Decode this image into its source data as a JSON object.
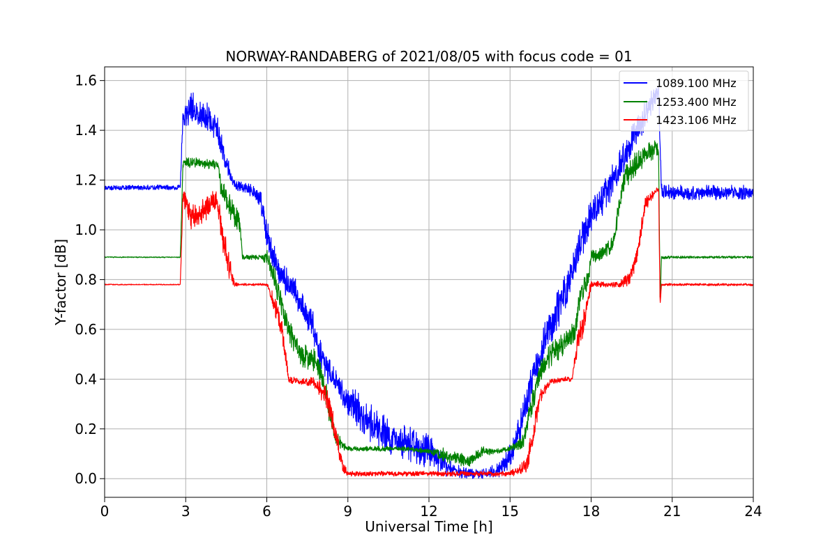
{
  "chart_data": {
    "type": "line",
    "title": "NORWAY-RANDABERG of 2021/08/05 with focus code = 01",
    "xlabel": "Universal Time [h]",
    "ylabel": "Y-factor [dB]",
    "xlim": [
      0,
      24
    ],
    "ylim": [
      -0.075,
      1.655
    ],
    "xticks": [
      0,
      3,
      6,
      9,
      12,
      15,
      18,
      21,
      24
    ],
    "xtick_labels": [
      "0",
      "3",
      "6",
      "9",
      "12",
      "15",
      "18",
      "21",
      "24"
    ],
    "yticks": [
      0.0,
      0.2,
      0.4,
      0.6,
      0.8,
      1.0,
      1.2,
      1.4,
      1.6
    ],
    "ytick_labels": [
      "0.0",
      "0.2",
      "0.4",
      "0.6",
      "0.8",
      "1.0",
      "1.2",
      "1.4",
      "1.6"
    ],
    "grid": true,
    "legend_position": "top-right",
    "series": [
      {
        "name": "1089.100 MHz",
        "color": "#0000ff",
        "x": [
          0,
          1,
          2,
          2.8,
          2.9,
          3.3,
          3.8,
          4.2,
          4.4,
          4.8,
          5.2,
          5.6,
          5.8,
          6.0,
          6.3,
          6.6,
          7.0,
          7.3,
          7.7,
          7.9,
          8.2,
          8.5,
          8.8,
          9.2,
          9.6,
          10.0,
          10.5,
          11.0,
          11.5,
          12.0,
          12.5,
          13.0,
          13.5,
          14.0,
          14.5,
          14.8,
          15.0,
          15.3,
          15.6,
          15.9,
          16.3,
          16.7,
          17.0,
          17.3,
          17.6,
          17.8,
          18.0,
          18.4,
          18.8,
          19.2,
          19.6,
          20.0,
          20.4,
          20.5,
          20.6,
          21.0,
          22.0,
          23.0,
          24.0
        ],
        "y": [
          1.17,
          1.17,
          1.17,
          1.17,
          1.47,
          1.49,
          1.45,
          1.4,
          1.3,
          1.18,
          1.17,
          1.15,
          1.1,
          0.98,
          0.88,
          0.8,
          0.76,
          0.7,
          0.62,
          0.52,
          0.44,
          0.4,
          0.34,
          0.3,
          0.24,
          0.21,
          0.17,
          0.15,
          0.13,
          0.11,
          0.06,
          0.03,
          0.02,
          0.02,
          0.03,
          0.05,
          0.1,
          0.18,
          0.3,
          0.42,
          0.56,
          0.66,
          0.74,
          0.84,
          0.94,
          1.0,
          1.06,
          1.12,
          1.2,
          1.28,
          1.38,
          1.46,
          1.55,
          1.55,
          1.16,
          1.15,
          1.15,
          1.15,
          1.15
        ],
        "noise": [
          0.01,
          0.01,
          0.01,
          0.01,
          0.06,
          0.07,
          0.06,
          0.05,
          0.05,
          0.02,
          0.02,
          0.03,
          0.05,
          0.06,
          0.06,
          0.06,
          0.06,
          0.06,
          0.06,
          0.06,
          0.06,
          0.05,
          0.06,
          0.07,
          0.08,
          0.08,
          0.07,
          0.07,
          0.07,
          0.07,
          0.05,
          0.03,
          0.02,
          0.02,
          0.03,
          0.04,
          0.05,
          0.06,
          0.08,
          0.08,
          0.08,
          0.08,
          0.08,
          0.08,
          0.08,
          0.07,
          0.07,
          0.07,
          0.07,
          0.07,
          0.06,
          0.06,
          0.04,
          0.04,
          0.03,
          0.03,
          0.03,
          0.03,
          0.03
        ]
      },
      {
        "name": "1253.400 MHz",
        "color": "#008000",
        "x": [
          0,
          1,
          2,
          2.8,
          2.9,
          3.5,
          4.2,
          4.3,
          4.6,
          5.0,
          5.1,
          5.8,
          6.0,
          6.3,
          6.6,
          6.9,
          7.3,
          7.7,
          8.0,
          8.3,
          8.5,
          8.8,
          9.0,
          9.5,
          10.0,
          11.0,
          12.0,
          12.5,
          13.0,
          13.5,
          14.0,
          14.5,
          15.0,
          15.5,
          15.8,
          16.2,
          16.5,
          16.8,
          17.1,
          17.4,
          17.6,
          17.9,
          18.0,
          18.4,
          18.8,
          19.2,
          19.6,
          20.0,
          20.4,
          20.5,
          20.55,
          20.6,
          21.0,
          22.0,
          23.0,
          24.0
        ],
        "y": [
          0.89,
          0.89,
          0.89,
          0.89,
          1.27,
          1.27,
          1.26,
          1.18,
          1.1,
          1.02,
          0.89,
          0.89,
          0.89,
          0.8,
          0.68,
          0.58,
          0.5,
          0.48,
          0.44,
          0.28,
          0.18,
          0.13,
          0.12,
          0.12,
          0.12,
          0.12,
          0.11,
          0.1,
          0.08,
          0.07,
          0.11,
          0.11,
          0.12,
          0.15,
          0.3,
          0.45,
          0.5,
          0.52,
          0.56,
          0.58,
          0.75,
          0.8,
          0.89,
          0.9,
          0.94,
          1.2,
          1.26,
          1.3,
          1.33,
          1.3,
          0.7,
          0.89,
          0.89,
          0.89,
          0.89,
          0.89
        ],
        "noise": [
          0.002,
          0.002,
          0.002,
          0.002,
          0.02,
          0.02,
          0.02,
          0.05,
          0.05,
          0.05,
          0.01,
          0.01,
          0.03,
          0.05,
          0.05,
          0.05,
          0.05,
          0.05,
          0.05,
          0.05,
          0.04,
          0.02,
          0.01,
          0.01,
          0.01,
          0.01,
          0.01,
          0.03,
          0.03,
          0.03,
          0.02,
          0.01,
          0.01,
          0.03,
          0.05,
          0.05,
          0.05,
          0.05,
          0.05,
          0.05,
          0.05,
          0.04,
          0.03,
          0.03,
          0.04,
          0.05,
          0.05,
          0.04,
          0.04,
          0.03,
          0.03,
          0.01,
          0.005,
          0.005,
          0.005,
          0.005
        ]
      },
      {
        "name": "1423.106 MHz",
        "color": "#ff0000",
        "x": [
          0,
          1,
          2,
          2.8,
          2.9,
          3.2,
          3.6,
          4.0,
          4.2,
          4.4,
          4.6,
          4.8,
          5.0,
          6.0,
          6.3,
          6.6,
          6.8,
          7.2,
          7.7,
          8.2,
          8.5,
          8.8,
          9.0,
          10.0,
          11.0,
          12.0,
          13.0,
          14.0,
          15.0,
          15.3,
          15.6,
          15.9,
          16.1,
          16.5,
          17.0,
          17.3,
          17.5,
          17.7,
          18.0,
          18.5,
          19.0,
          19.4,
          19.7,
          20.0,
          20.4,
          20.5,
          20.55,
          20.6,
          21.0,
          22.0,
          23.0,
          24.0
        ],
        "y": [
          0.78,
          0.78,
          0.78,
          0.78,
          1.13,
          1.05,
          1.07,
          1.12,
          1.1,
          0.95,
          0.86,
          0.78,
          0.78,
          0.78,
          0.7,
          0.58,
          0.4,
          0.39,
          0.39,
          0.33,
          0.2,
          0.05,
          0.02,
          0.02,
          0.02,
          0.02,
          0.02,
          0.02,
          0.02,
          0.03,
          0.05,
          0.2,
          0.33,
          0.39,
          0.4,
          0.4,
          0.55,
          0.62,
          0.78,
          0.78,
          0.78,
          0.8,
          0.9,
          1.1,
          1.16,
          1.16,
          0.7,
          0.78,
          0.78,
          0.78,
          0.78,
          0.78
        ],
        "noise": [
          0.002,
          0.002,
          0.002,
          0.002,
          0.04,
          0.05,
          0.05,
          0.05,
          0.05,
          0.06,
          0.06,
          0.01,
          0.005,
          0.005,
          0.05,
          0.05,
          0.02,
          0.01,
          0.02,
          0.05,
          0.05,
          0.03,
          0.01,
          0.01,
          0.01,
          0.01,
          0.01,
          0.01,
          0.01,
          0.02,
          0.04,
          0.05,
          0.03,
          0.01,
          0.01,
          0.01,
          0.05,
          0.05,
          0.02,
          0.01,
          0.01,
          0.03,
          0.04,
          0.03,
          0.01,
          0.01,
          0.02,
          0.005,
          0.005,
          0.005,
          0.005,
          0.005
        ]
      }
    ]
  }
}
